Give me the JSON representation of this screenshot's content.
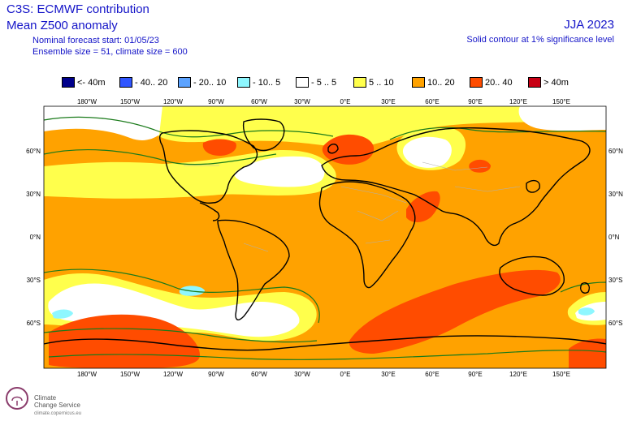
{
  "header": {
    "title_line1": "C3S: ECMWF contribution",
    "title_line2": "Mean Z500 anomaly",
    "subtitle_line1": "Nominal forecast start: 01/05/23",
    "subtitle_line2": "Ensemble size = 51, climate size = 600",
    "season": "JJA 2023",
    "significance_note": "Solid contour at 1% significance level"
  },
  "legend": [
    {
      "label": "<- 40m",
      "color": "#00008b"
    },
    {
      "label": "- 40.. 20",
      "color": "#3056ff"
    },
    {
      "label": "- 20.. 10",
      "color": "#5ca3ff"
    },
    {
      "label": "- 10.. 5",
      "color": "#8ef7ff"
    },
    {
      "label": "- 5 .. 5",
      "color": "#ffffff"
    },
    {
      "label": "5 .. 10",
      "color": "#ffff4c"
    },
    {
      "label": "10.. 20",
      "color": "#ffa200"
    },
    {
      "label": "20.. 40",
      "color": "#ff4c00"
    },
    {
      "label": "> 40m",
      "color": "#c80014"
    }
  ],
  "map": {
    "lon_ticks": [
      "180°W",
      "150°W",
      "120°W",
      "90°W",
      "60°W",
      "30°W",
      "0°E",
      "30°E",
      "60°E",
      "90°E",
      "120°E",
      "150°E"
    ],
    "lat_ticks": [
      "60°N",
      "30°N",
      "0°N",
      "30°S",
      "60°S"
    ],
    "colors": {
      "land_outline": "#000000",
      "border": "#b0b0b0",
      "significance_contour": "#1a7a1a"
    }
  },
  "branding": {
    "name_line1": "Climate",
    "name_line2": "Change Service",
    "url": "climate.copernicus.eu"
  }
}
